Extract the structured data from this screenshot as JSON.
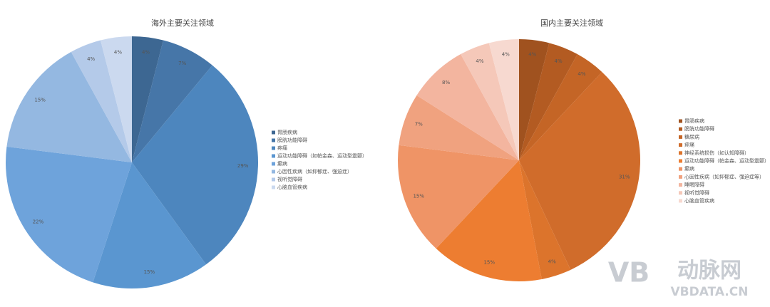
{
  "chart_data": [
    {
      "type": "pie",
      "title": "海外主要关注领域",
      "categories": [
        "胃肠疾病",
        "膀胱功能障碍",
        "疼痛",
        "运动功能障碍（如帕金森、运动型震颤）",
        "癫病",
        "心因性疾病（如抑郁症、强迫症）",
        "视听觉障碍",
        "心脑血管疾病"
      ],
      "values": [
        4,
        7,
        29,
        15,
        22,
        15,
        4,
        4
      ],
      "value_labels": [
        "4%",
        "7%",
        "29%",
        "15%",
        "22%",
        "15%",
        "4%",
        "4%"
      ],
      "colors": [
        "#3d6792",
        "#4676a8",
        "#4d86be",
        "#5a96d0",
        "#6ea3db",
        "#94b8e1",
        "#b4cae9",
        "#cbd9ef"
      ],
      "legend": "right"
    },
    {
      "type": "pie",
      "title": "国内主要关注领域",
      "categories": [
        "胃肠疾病",
        "膀胱功能障碍",
        "糖尿病",
        "疼痛",
        "神经系统损伤（如认知障碍）",
        "运动功能障碍（帕金森、运动型震颤）",
        "癫病",
        "心因性疾病（如抑郁症、强迫症等）",
        "睡眠障碍",
        "视听觉障碍",
        "心脑血管疾病"
      ],
      "values": [
        4,
        4,
        4,
        31,
        4,
        15,
        15,
        7,
        8,
        4,
        4
      ],
      "value_labels": [
        "4%",
        "4%",
        "4%",
        "31%",
        "4%",
        "15%",
        "15%",
        "7%",
        "8%",
        "4%",
        "4%"
      ],
      "colors": [
        "#a0521f",
        "#b35b22",
        "#c46526",
        "#d06c2b",
        "#dc742c",
        "#ed7d31",
        "#ef9466",
        "#f0a27f",
        "#f3b59f",
        "#f5c8b9",
        "#f7d9d0"
      ],
      "legend": "right"
    }
  ],
  "watermark": {
    "logo": "VB",
    "name": "动脉网",
    "url": "VBDATA.CN"
  }
}
